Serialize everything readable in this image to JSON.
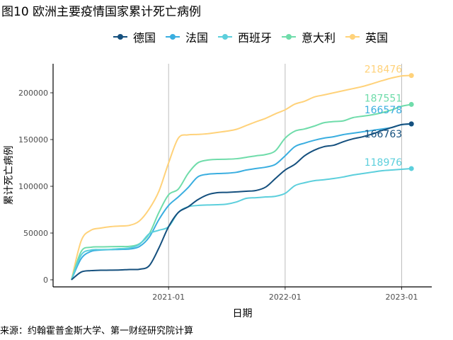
{
  "title": "图10 欧洲主要疫情国家累计死亡病例",
  "source": "来源：约翰霍普金斯大学、第一财经研究院计算",
  "chart_data": {
    "type": "line",
    "title": "图10 欧洲主要疫情国家累计死亡病例",
    "xlabel": "日期",
    "ylabel": "累计死亡病例",
    "ylim": [
      0,
      230000
    ],
    "yticks": [
      0,
      50000,
      100000,
      150000,
      200000
    ],
    "ytick_labels": [
      "0",
      "50000",
      "100000",
      "150000",
      "200000"
    ],
    "xtick_labels": [
      "2021-01",
      "2022-01",
      "2023-01"
    ],
    "x_start": "2020-03",
    "x_step": "month",
    "legend_position": "top",
    "grid": "vertical major lines",
    "series": [
      {
        "name": "德国",
        "color": "#15507e",
        "end_label": "166763",
        "values": [
          0,
          8300,
          9800,
          10200,
          10300,
          10500,
          11000,
          11300,
          15000,
          34000,
          56800,
          72000,
          78000,
          85600,
          90900,
          93200,
          93500,
          94000,
          94700,
          95500,
          99200,
          108300,
          117400,
          123500,
          132600,
          138600,
          142400,
          143900,
          147700,
          150800,
          153000,
          156000,
          159800,
          162900,
          166000,
          166763
        ]
      },
      {
        "name": "法国",
        "color": "#3aaee0",
        "end_label": "166578",
        "values": [
          0,
          22700,
          30300,
          31800,
          32300,
          32500,
          32900,
          35600,
          45500,
          64400,
          79500,
          88600,
          98500,
          110000,
          112900,
          113600,
          114000,
          115000,
          117400,
          119000,
          120500,
          123500,
          132600,
          142400,
          146200,
          149200,
          151500,
          153000,
          155300,
          156800,
          158300,
          159800,
          161300,
          162900,
          165900,
          166578
        ]
      },
      {
        "name": "西班牙",
        "color": "#5ccfdc",
        "end_label": "118976",
        "values": [
          0,
          26500,
          31800,
          32300,
          32500,
          33300,
          34100,
          37900,
          49200,
          53000,
          56800,
          72000,
          78000,
          79500,
          80000,
          80300,
          81000,
          83300,
          87100,
          87800,
          88600,
          89300,
          92400,
          100700,
          103800,
          106000,
          107000,
          108300,
          110000,
          112100,
          113600,
          115200,
          116700,
          117400,
          118200,
          118976
        ]
      },
      {
        "name": "意大利",
        "color": "#6fdcaa",
        "end_label": "187551",
        "values": [
          0,
          30300,
          34800,
          35200,
          35400,
          35600,
          35800,
          38600,
          49000,
          72000,
          90900,
          97000,
          113600,
          125000,
          128000,
          128800,
          129000,
          129500,
          131000,
          132600,
          134000,
          138000,
          151500,
          159000,
          161300,
          164400,
          168000,
          169200,
          170000,
          173500,
          175000,
          176500,
          178800,
          181800,
          185600,
          187551
        ]
      },
      {
        "name": "英国",
        "color": "#ffd27a",
        "end_label": "218476",
        "values": [
          0,
          41700,
          53000,
          55300,
          56800,
          57500,
          58300,
          63000,
          75700,
          94700,
          125000,
          151500,
          155000,
          155500,
          156200,
          157600,
          159000,
          161000,
          165000,
          169000,
          172700,
          177500,
          181800,
          187900,
          191000,
          195500,
          197700,
          200000,
          202300,
          204500,
          206800,
          209800,
          213000,
          215900,
          218000,
          218476
        ]
      }
    ]
  }
}
